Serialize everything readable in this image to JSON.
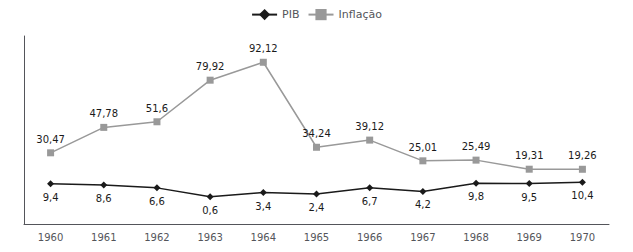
{
  "chart_data": {
    "type": "line",
    "categories": [
      "1960",
      "1961",
      "1962",
      "1963",
      "1964",
      "1965",
      "1966",
      "1967",
      "1968",
      "1969",
      "1970"
    ],
    "series": [
      {
        "name": "PIB",
        "color": "#1a1a1a",
        "marker": "diamond",
        "values": [
          9.4,
          8.6,
          6.6,
          0.6,
          3.4,
          2.4,
          6.7,
          4.2,
          9.8,
          9.5,
          10.4
        ],
        "value_labels": [
          "9,4",
          "8,6",
          "6,6",
          "0,6",
          "3,4",
          "2,4",
          "6,7",
          "4,2",
          "9,8",
          "9,5",
          "10,4"
        ]
      },
      {
        "name": "Inflação",
        "color": "#999999",
        "marker": "square",
        "values": [
          30.47,
          47.78,
          51.6,
          79.92,
          92.12,
          34.24,
          39.12,
          25.01,
          25.49,
          19.31,
          19.26
        ],
        "value_labels": [
          "30,47",
          "47,78",
          "51,6",
          "79,92",
          "92,12",
          "34,24",
          "39,12",
          "25,01",
          "25,49",
          "19,31",
          "19,26"
        ]
      }
    ],
    "ylim": [
      -18,
      110
    ],
    "tick_labels": "x",
    "data_labels": true,
    "grid": false,
    "legend": "top"
  }
}
